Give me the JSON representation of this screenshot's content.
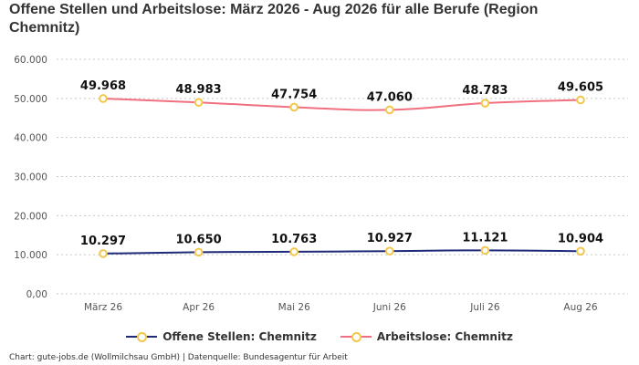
{
  "chart_data": {
    "type": "line",
    "title": "Offene Stellen und Arbeitslose: März 2026 - Aug 2026 für alle Berufe (Region Chemnitz)",
    "categories": [
      "März 26",
      "Apr 26",
      "Mai 26",
      "Juni 26",
      "Juli 26",
      "Aug 26"
    ],
    "ylim": [
      0,
      60000
    ],
    "yticks": [
      0,
      10000,
      20000,
      30000,
      40000,
      50000,
      60000
    ],
    "ytick_labels": [
      "0,00",
      "10.000",
      "20.000",
      "30.000",
      "40.000",
      "50.000",
      "60.000"
    ],
    "grid": true,
    "legend_position": "bottom",
    "series": [
      {
        "name": "Offene Stellen: Chemnitz",
        "values": [
          10297,
          10650,
          10763,
          10927,
          11121,
          10904
        ],
        "labels": [
          "10.297",
          "10.650",
          "10.763",
          "10.927",
          "11.121",
          "10.904"
        ],
        "color": "#1f2a7a"
      },
      {
        "name": "Arbeitslose: Chemnitz",
        "values": [
          49968,
          48983,
          47754,
          47060,
          48783,
          49605
        ],
        "labels": [
          "49.968",
          "48.983",
          "47.754",
          "47.060",
          "48.783",
          "49.605"
        ],
        "color": "#f07080"
      }
    ],
    "marker_color": "#f2c84b"
  },
  "footer": "Chart: gute-jobs.de (Wollmilchsau GmbH) | Datenquelle: Bundesagentur für Arbeit"
}
